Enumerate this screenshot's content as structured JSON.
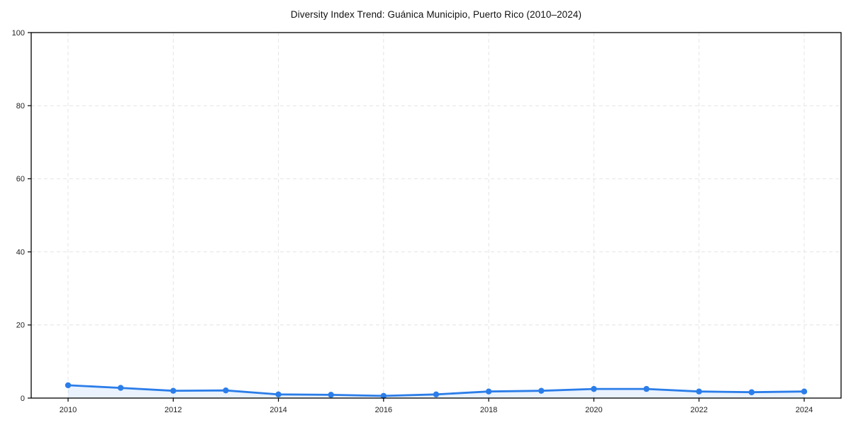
{
  "page": {
    "background": "#ffffff"
  },
  "chart_data": {
    "type": "area",
    "title": "Diversity Index Trend: Guánica Municipio, Puerto Rico (2010–2024)",
    "x": [
      2010,
      2011,
      2012,
      2013,
      2014,
      2015,
      2016,
      2017,
      2018,
      2019,
      2020,
      2021,
      2022,
      2023,
      2024
    ],
    "series": [
      {
        "name": "Diversity Index",
        "values": [
          3.5,
          2.8,
          2.0,
          2.1,
          1.0,
          0.9,
          0.6,
          1.0,
          1.8,
          2.0,
          2.5,
          2.5,
          1.8,
          1.6,
          1.8
        ]
      }
    ],
    "xlabel": "",
    "ylabel": "",
    "xlim": [
      2009.3,
      2024.7
    ],
    "ylim": [
      0,
      100
    ],
    "yticks": [
      0,
      20,
      40,
      60,
      80,
      100
    ],
    "xticks": [
      2010,
      2012,
      2014,
      2016,
      2018,
      2020,
      2022,
      2024
    ],
    "grid": "dashed",
    "legend_position": "none",
    "marker": "circle",
    "colors": {
      "line": "#2b7de9",
      "marker": "#2b7de9",
      "area_fill": "rgba(43, 125, 233, 0.10)",
      "grid": "#e4e4e4",
      "spine": "#000000",
      "tick": "#000000",
      "tick_label": "#222222",
      "title": "#111111"
    }
  }
}
